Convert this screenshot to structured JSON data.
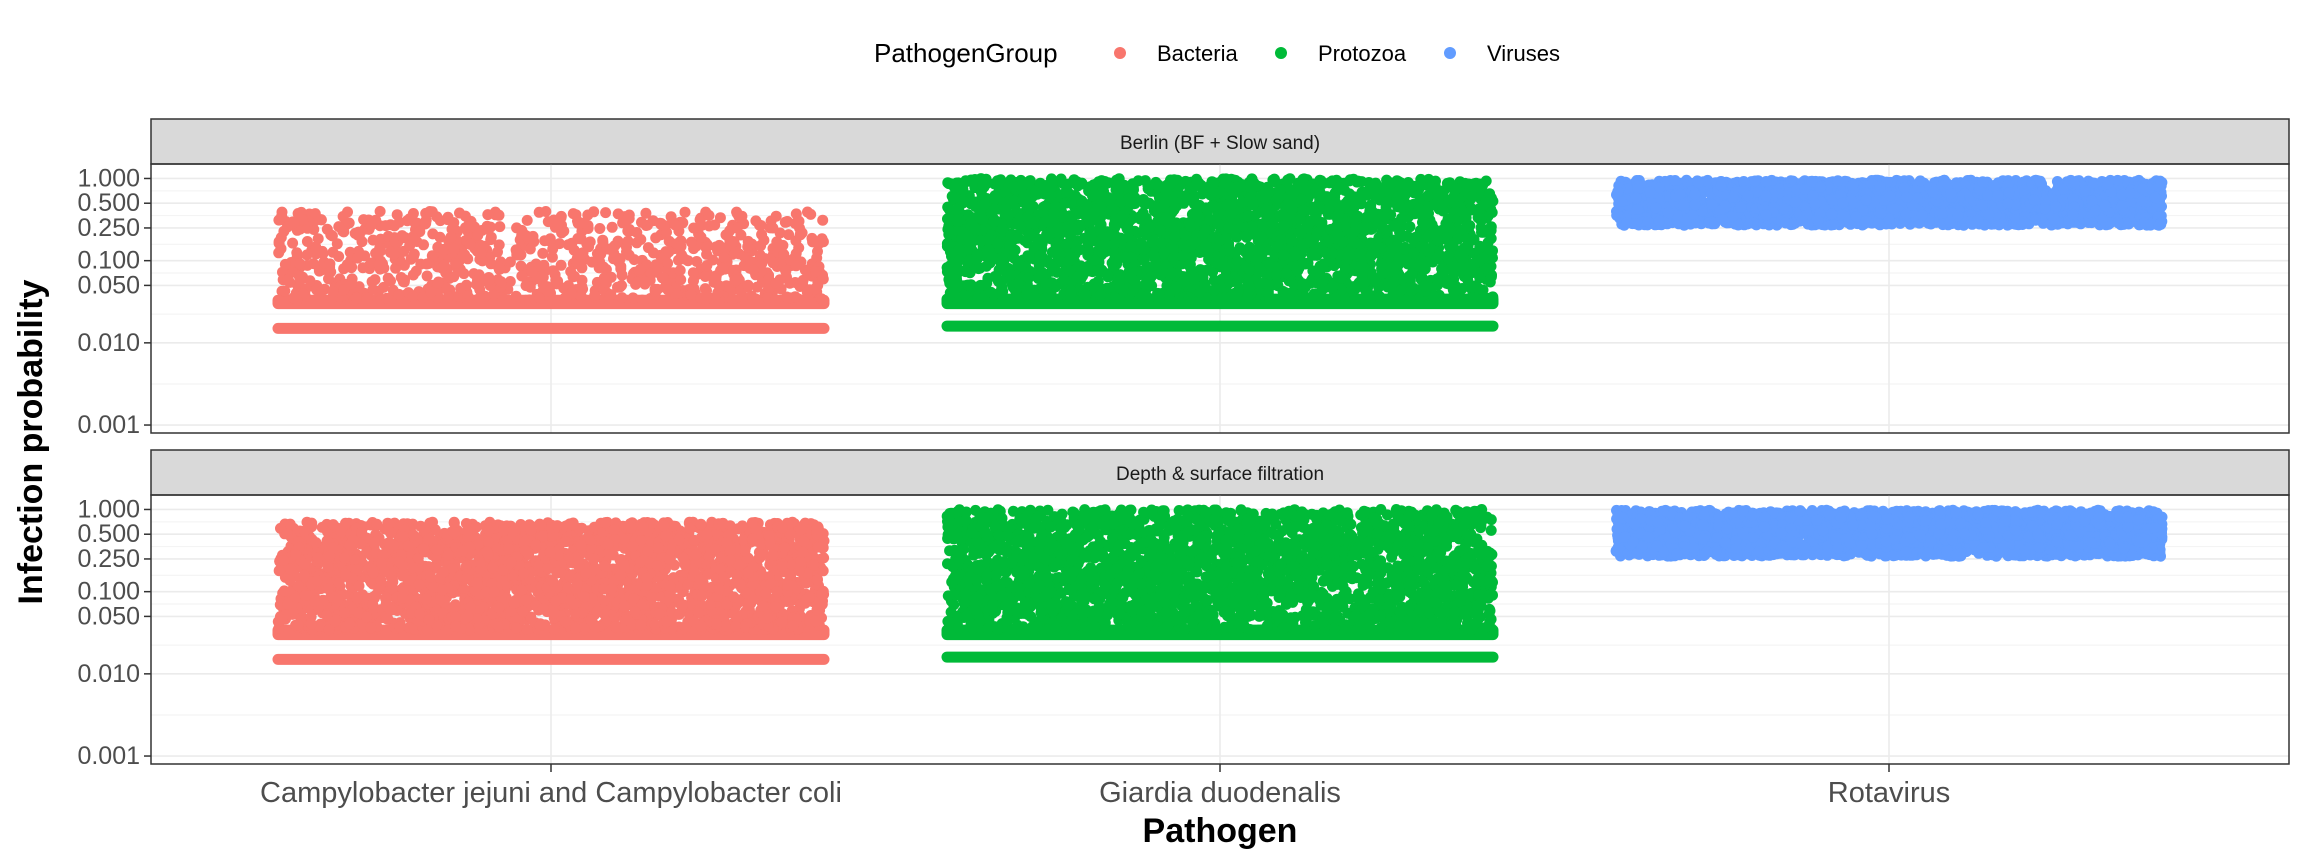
{
  "chart_data": {
    "type": "scatter",
    "xlabel": "Pathogen",
    "ylabel": "Infection probability",
    "y_scale": "log10",
    "ylim": [
      0.0008,
      1.5
    ],
    "y_ticks": [
      {
        "value": 0.001,
        "label": "0.001"
      },
      {
        "value": 0.01,
        "label": "0.010"
      },
      {
        "value": 0.05,
        "label": "0.050"
      },
      {
        "value": 0.1,
        "label": "0.100"
      },
      {
        "value": 0.25,
        "label": "0.250"
      },
      {
        "value": 0.5,
        "label": "0.500"
      },
      {
        "value": 1.0,
        "label": "1.000"
      }
    ],
    "grid": true,
    "categories": [
      "Campylobacter jejuni and Campylobacter coli",
      "Giardia duodenalis",
      "Rotavirus"
    ],
    "legend": {
      "title": "PathogenGroup",
      "position": "top",
      "items": [
        {
          "name": "Bacteria",
          "color": "#F8766D"
        },
        {
          "name": "Protozoa",
          "color": "#00BA38"
        },
        {
          "name": "Viruses",
          "color": "#619CFF"
        }
      ]
    },
    "panels": [
      {
        "title": "Berlin (BF + Slow sand)",
        "series": [
          {
            "name": "Bacteria",
            "category": "Campylobacter jejuni and Campylobacter coli",
            "y_min": 0.015,
            "y_max": 0.4,
            "baseline": 0.015,
            "dense_band": [
              0.03,
              0.033
            ]
          },
          {
            "name": "Protozoa",
            "category": "Giardia duodenalis",
            "y_min": 0.016,
            "y_max": 1.0,
            "baseline": 0.016,
            "dense_band": [
              0.03,
              0.034
            ]
          },
          {
            "name": "Viruses",
            "category": "Rotavirus",
            "y_min": 0.27,
            "y_max": 0.95
          }
        ]
      },
      {
        "title": "Depth & surface filtration",
        "series": [
          {
            "name": "Bacteria",
            "category": "Campylobacter jejuni and Campylobacter coli",
            "y_min": 0.015,
            "y_max": 0.7,
            "baseline": 0.015,
            "dense_band": [
              0.03,
              0.034
            ]
          },
          {
            "name": "Protozoa",
            "category": "Giardia duodenalis",
            "y_min": 0.016,
            "y_max": 1.0,
            "baseline": 0.016,
            "dense_band": [
              0.03,
              0.034
            ]
          },
          {
            "name": "Viruses",
            "category": "Rotavirus",
            "y_min": 0.27,
            "y_max": 0.98
          }
        ]
      }
    ]
  }
}
